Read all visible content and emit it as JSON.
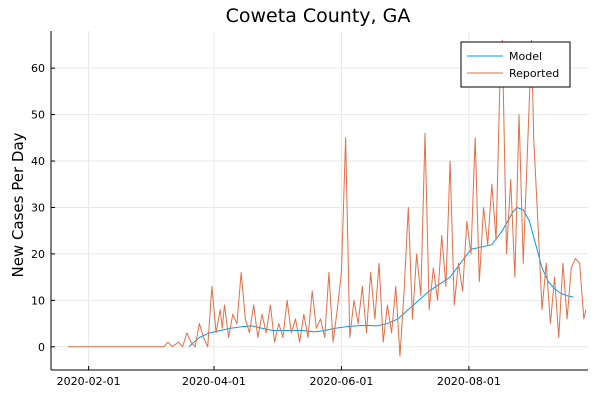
{
  "chart_data": {
    "type": "line",
    "title": "Coweta County, GA",
    "xlabel": "",
    "ylabel": "New Cases Per Day",
    "x_ticks": [
      "2020-02-01",
      "2020-04-01",
      "2020-06-01",
      "2020-08-01"
    ],
    "y_ticks": [
      0,
      10,
      20,
      30,
      40,
      50,
      60
    ],
    "xlim": [
      "2020-01-14",
      "2020-09-27"
    ],
    "ylim": [
      -5,
      68
    ],
    "grid": true,
    "legend_position": "top-right",
    "series": [
      {
        "name": "Model",
        "color": "#009af9",
        "points": [
          [
            "2020-03-20",
            0
          ],
          [
            "2020-03-25",
            2
          ],
          [
            "2020-03-30",
            3
          ],
          [
            "2020-04-04",
            3.5
          ],
          [
            "2020-04-09",
            4
          ],
          [
            "2020-04-14",
            4.3
          ],
          [
            "2020-04-19",
            4.5
          ],
          [
            "2020-04-24",
            4
          ],
          [
            "2020-04-29",
            3.5
          ],
          [
            "2020-05-04",
            3.5
          ],
          [
            "2020-05-09",
            3.5
          ],
          [
            "2020-05-14",
            3.5
          ],
          [
            "2020-05-19",
            3.2
          ],
          [
            "2020-05-24",
            3.5
          ],
          [
            "2020-05-29",
            4
          ],
          [
            "2020-06-03",
            4.3
          ],
          [
            "2020-06-08",
            4.5
          ],
          [
            "2020-06-13",
            4.6
          ],
          [
            "2020-06-18",
            4.5
          ],
          [
            "2020-06-23",
            5
          ],
          [
            "2020-06-28",
            6
          ],
          [
            "2020-07-03",
            8
          ],
          [
            "2020-07-08",
            10
          ],
          [
            "2020-07-13",
            12
          ],
          [
            "2020-07-18",
            13.5
          ],
          [
            "2020-07-23",
            15
          ],
          [
            "2020-07-28",
            18
          ],
          [
            "2020-08-02",
            21
          ],
          [
            "2020-08-07",
            21.5
          ],
          [
            "2020-08-12",
            22
          ],
          [
            "2020-08-17",
            25
          ],
          [
            "2020-08-22",
            29
          ],
          [
            "2020-08-24",
            30
          ],
          [
            "2020-08-27",
            29.5
          ],
          [
            "2020-08-30",
            27
          ],
          [
            "2020-09-02",
            22
          ],
          [
            "2020-09-05",
            17
          ],
          [
            "2020-09-08",
            14
          ],
          [
            "2020-09-11",
            12.5
          ],
          [
            "2020-09-14",
            11.5
          ],
          [
            "2020-09-17",
            11
          ],
          [
            "2020-09-20",
            10.7
          ]
        ]
      },
      {
        "name": "Reported",
        "color": "#e26f46",
        "points": [
          [
            "2020-01-22",
            0
          ],
          [
            "2020-03-08",
            0
          ],
          [
            "2020-03-10",
            1
          ],
          [
            "2020-03-12",
            0
          ],
          [
            "2020-03-15",
            1
          ],
          [
            "2020-03-17",
            0
          ],
          [
            "2020-03-19",
            3
          ],
          [
            "2020-03-21",
            1
          ],
          [
            "2020-03-23",
            0
          ],
          [
            "2020-03-25",
            5
          ],
          [
            "2020-03-27",
            2
          ],
          [
            "2020-03-29",
            0
          ],
          [
            "2020-03-31",
            13
          ],
          [
            "2020-04-02",
            3
          ],
          [
            "2020-04-04",
            8
          ],
          [
            "2020-04-05",
            4
          ],
          [
            "2020-04-06",
            9
          ],
          [
            "2020-04-08",
            2
          ],
          [
            "2020-04-10",
            7
          ],
          [
            "2020-04-12",
            5
          ],
          [
            "2020-04-14",
            16
          ],
          [
            "2020-04-16",
            6
          ],
          [
            "2020-04-18",
            3
          ],
          [
            "2020-04-20",
            9
          ],
          [
            "2020-04-22",
            2
          ],
          [
            "2020-04-24",
            7
          ],
          [
            "2020-04-26",
            3
          ],
          [
            "2020-04-28",
            9
          ],
          [
            "2020-04-30",
            1
          ],
          [
            "2020-05-02",
            5
          ],
          [
            "2020-05-04",
            2
          ],
          [
            "2020-05-06",
            10
          ],
          [
            "2020-05-08",
            3
          ],
          [
            "2020-05-10",
            6
          ],
          [
            "2020-05-12",
            1
          ],
          [
            "2020-05-14",
            7
          ],
          [
            "2020-05-16",
            2
          ],
          [
            "2020-05-18",
            12
          ],
          [
            "2020-05-20",
            4
          ],
          [
            "2020-05-22",
            6
          ],
          [
            "2020-05-24",
            2
          ],
          [
            "2020-05-26",
            16
          ],
          [
            "2020-05-28",
            1
          ],
          [
            "2020-05-30",
            8
          ],
          [
            "2020-06-01",
            16
          ],
          [
            "2020-06-03",
            45
          ],
          [
            "2020-06-05",
            2
          ],
          [
            "2020-06-07",
            10
          ],
          [
            "2020-06-09",
            5
          ],
          [
            "2020-06-11",
            13
          ],
          [
            "2020-06-13",
            3
          ],
          [
            "2020-06-15",
            16
          ],
          [
            "2020-06-17",
            6
          ],
          [
            "2020-06-19",
            18
          ],
          [
            "2020-06-21",
            1
          ],
          [
            "2020-06-23",
            9
          ],
          [
            "2020-06-25",
            3
          ],
          [
            "2020-06-27",
            13
          ],
          [
            "2020-06-29",
            -2
          ],
          [
            "2020-07-01",
            12
          ],
          [
            "2020-07-03",
            30
          ],
          [
            "2020-07-05",
            6
          ],
          [
            "2020-07-07",
            20
          ],
          [
            "2020-07-09",
            11
          ],
          [
            "2020-07-11",
            46
          ],
          [
            "2020-07-13",
            8
          ],
          [
            "2020-07-15",
            17
          ],
          [
            "2020-07-17",
            10
          ],
          [
            "2020-07-19",
            24
          ],
          [
            "2020-07-21",
            13
          ],
          [
            "2020-07-23",
            40
          ],
          [
            "2020-07-25",
            9
          ],
          [
            "2020-07-27",
            18
          ],
          [
            "2020-07-29",
            12
          ],
          [
            "2020-07-31",
            27
          ],
          [
            "2020-08-02",
            20
          ],
          [
            "2020-08-04",
            45
          ],
          [
            "2020-08-06",
            14
          ],
          [
            "2020-08-08",
            30
          ],
          [
            "2020-08-10",
            22
          ],
          [
            "2020-08-12",
            35
          ],
          [
            "2020-08-14",
            23
          ],
          [
            "2020-08-16",
            60
          ],
          [
            "2020-08-17",
            66
          ],
          [
            "2020-08-19",
            20
          ],
          [
            "2020-08-21",
            36
          ],
          [
            "2020-08-23",
            15
          ],
          [
            "2020-08-25",
            50
          ],
          [
            "2020-08-27",
            18
          ],
          [
            "2020-08-29",
            42
          ],
          [
            "2020-08-31",
            66
          ],
          [
            "2020-09-01",
            45
          ],
          [
            "2020-09-03",
            27
          ],
          [
            "2020-09-05",
            8
          ],
          [
            "2020-09-07",
            18
          ],
          [
            "2020-09-09",
            5
          ],
          [
            "2020-09-11",
            15
          ],
          [
            "2020-09-13",
            2
          ],
          [
            "2020-09-15",
            18
          ],
          [
            "2020-09-17",
            6
          ],
          [
            "2020-09-19",
            17
          ],
          [
            "2020-09-21",
            19
          ],
          [
            "2020-09-23",
            18
          ],
          [
            "2020-09-25",
            6
          ],
          [
            "2020-09-26",
            8
          ]
        ]
      }
    ]
  }
}
